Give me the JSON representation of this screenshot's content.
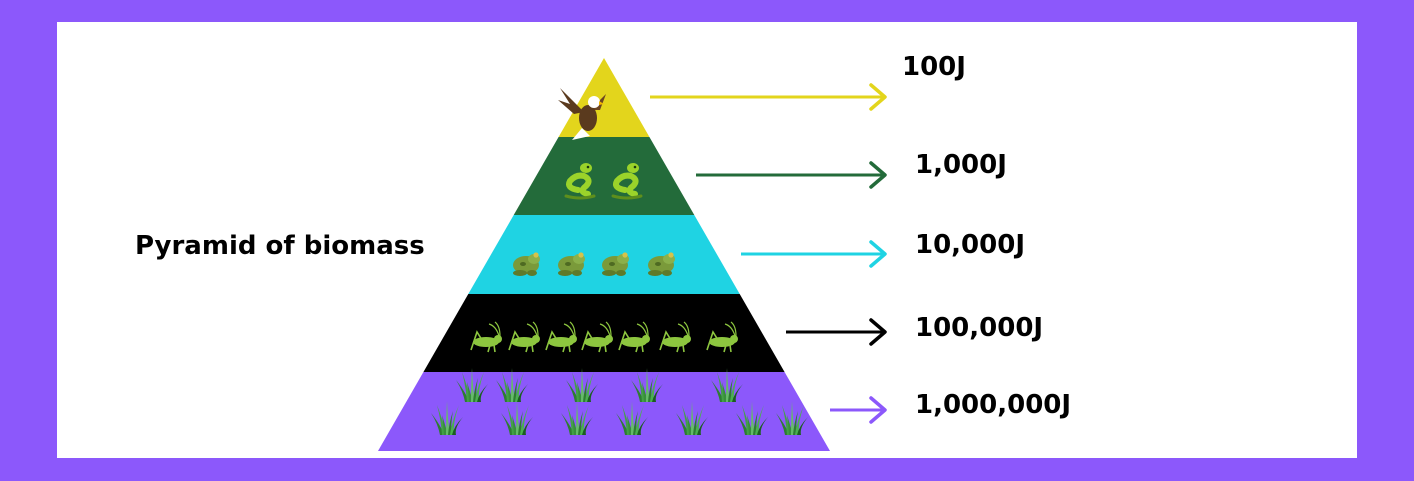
{
  "title": "Pyramid of biomass",
  "colors": {
    "border": "#8c58fb",
    "background": "#ffffff"
  },
  "levels": [
    {
      "organism": "eagle",
      "icon": "eagle-icon",
      "count": 1,
      "value": "100J",
      "color": "#e3d51c"
    },
    {
      "organism": "snake",
      "icon": "snake-icon",
      "count": 2,
      "value": "1,000J",
      "color": "#236b3a"
    },
    {
      "organism": "frog",
      "icon": "frog-icon",
      "count": 4,
      "value": "10,000J",
      "color": "#1fd3e3"
    },
    {
      "organism": "grasshopper",
      "icon": "grasshopper-icon",
      "count": 7,
      "value": "100,000J",
      "color": "#000000"
    },
    {
      "organism": "grass",
      "icon": "grass-icon",
      "count": 12,
      "value": "1,000,000J",
      "color": "#8c58fb"
    }
  ]
}
